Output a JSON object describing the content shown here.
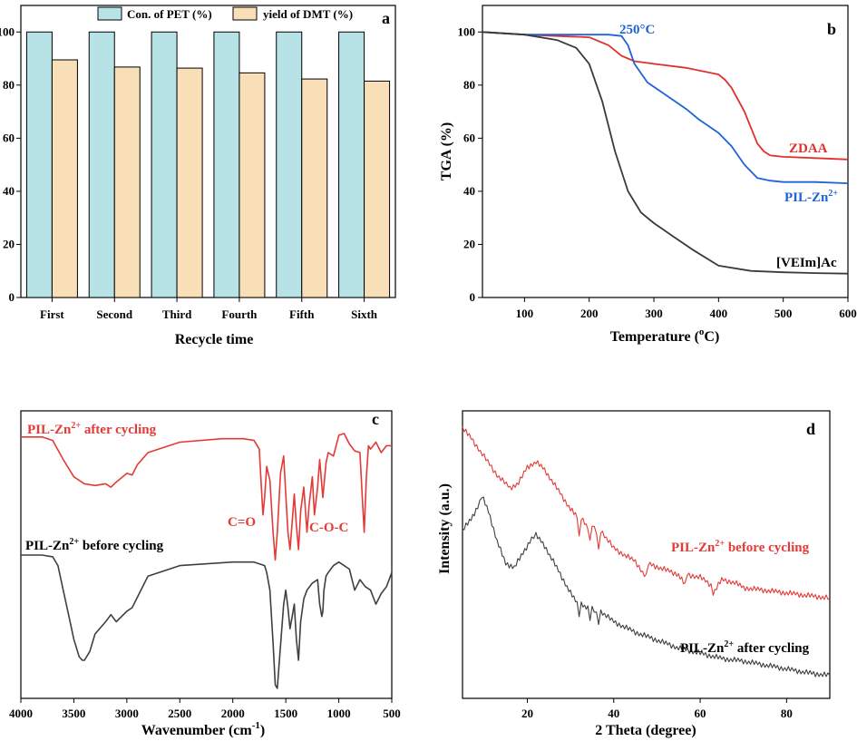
{
  "colors": {
    "pet": "#b7e2e6",
    "dmt": "#f8dfb8",
    "zdaa": "#e0302c",
    "pil": "#1e63d8",
    "veim": "#3a3a3a",
    "after": "#e33a36",
    "before": "#3f3f3f"
  },
  "chart_data": [
    {
      "panel": "a",
      "type": "bar",
      "xlabel": "Recycle time",
      "ylabel": "",
      "ylim": [
        0,
        110
      ],
      "yticks": [
        "0",
        "20",
        "40",
        "60",
        "80",
        "100"
      ],
      "categories": [
        "First",
        "Second",
        "Third",
        "Fourth",
        "Fifth",
        "Sixth"
      ],
      "series": [
        {
          "name": "Con. of PET (%)",
          "values": [
            100,
            100,
            100,
            100,
            100,
            100
          ]
        },
        {
          "name": "yield of DMT (%)",
          "values": [
            89.5,
            86.8,
            86.4,
            84.6,
            82.3,
            81.5
          ]
        }
      ],
      "legend": "top-center"
    },
    {
      "panel": "b",
      "type": "line",
      "xlabel_main": "Temperature (",
      "xlabel_sup": "o",
      "xlabel_end": "C)",
      "ylabel": "TGA (%)",
      "xlim": [
        35,
        600
      ],
      "ylim": [
        0,
        110
      ],
      "xticks": [
        "100",
        "200",
        "300",
        "400",
        "500",
        "600"
      ],
      "yticks": [
        "0",
        "20",
        "40",
        "60",
        "80",
        "100"
      ],
      "annotation": "250°C",
      "series": [
        {
          "name": "ZDAA",
          "x": [
            35,
            100,
            150,
            200,
            230,
            250,
            270,
            300,
            350,
            400,
            410,
            420,
            440,
            460,
            470,
            480,
            500,
            550,
            600
          ],
          "y": [
            100,
            99,
            98.5,
            98,
            95,
            91,
            89,
            88,
            86.5,
            84,
            82,
            79,
            70,
            58,
            55,
            53.5,
            53,
            52.5,
            52
          ]
        },
        {
          "name": "PIL-Zn",
          "sup": "2+",
          "x": [
            35,
            100,
            150,
            200,
            230,
            250,
            260,
            270,
            290,
            320,
            350,
            370,
            400,
            420,
            440,
            460,
            480,
            500,
            550,
            600
          ],
          "y": [
            100,
            99,
            99,
            99,
            99,
            98.5,
            95,
            88,
            81,
            76,
            71,
            67,
            62,
            57,
            50,
            45,
            44,
            43.5,
            43.5,
            43
          ]
        },
        {
          "name": "[VEIm]Ac",
          "x": [
            35,
            100,
            150,
            180,
            200,
            220,
            240,
            260,
            280,
            300,
            330,
            360,
            400,
            450,
            500,
            550,
            600
          ],
          "y": [
            100,
            99,
            97,
            94,
            88,
            74,
            55,
            40,
            32,
            28,
            23,
            18,
            12,
            10,
            9.5,
            9.2,
            9
          ]
        }
      ]
    },
    {
      "panel": "c",
      "type": "line",
      "xlabel_main": "Wavenumber (cm",
      "xlabel_sup": "-1",
      "xlabel_end": ")",
      "xlim": [
        4000,
        500
      ],
      "xticks": [
        "4000",
        "3500",
        "3000",
        "2500",
        "2000",
        "1500",
        "1000",
        "500"
      ],
      "annotations": [
        "C=O",
        "C-O-C"
      ],
      "series": [
        {
          "name": "PIL-Zn",
          "sup": "2+",
          "suffix": " after cycling",
          "x": [
            4000,
            3800,
            3700,
            3600,
            3500,
            3400,
            3300,
            3200,
            3150,
            3100,
            3000,
            2950,
            2900,
            2800,
            2500,
            2100,
            1900,
            1800,
            1750,
            1730,
            1715,
            1700,
            1680,
            1650,
            1620,
            1600,
            1580,
            1550,
            1520,
            1500,
            1480,
            1460,
            1440,
            1420,
            1400,
            1380,
            1360,
            1330,
            1300,
            1280,
            1250,
            1230,
            1200,
            1180,
            1150,
            1120,
            1100,
            1050,
            1000,
            950,
            900,
            850,
            800,
            780,
            760,
            740,
            720,
            700,
            650,
            600,
            550,
            500
          ],
          "y": [
            95,
            95,
            93,
            82,
            72,
            68,
            67,
            68,
            66,
            69,
            74,
            73,
            79,
            86,
            92,
            94,
            94,
            93,
            88,
            65,
            50,
            60,
            78,
            70,
            40,
            24,
            40,
            74,
            84,
            62,
            40,
            30,
            46,
            62,
            44,
            30,
            52,
            66,
            40,
            56,
            72,
            50,
            66,
            82,
            60,
            80,
            86,
            84,
            96,
            97,
            91,
            87,
            86,
            62,
            40,
            72,
            90,
            88,
            92,
            86,
            90,
            90
          ]
        },
        {
          "name": "PIL-Zn",
          "sup": "2+",
          "suffix": " before cycling",
          "x": [
            4000,
            3800,
            3700,
            3650,
            3600,
            3550,
            3500,
            3450,
            3420,
            3400,
            3350,
            3300,
            3200,
            3150,
            3100,
            3000,
            2950,
            2800,
            2500,
            2000,
            1800,
            1700,
            1680,
            1650,
            1620,
            1600,
            1580,
            1560,
            1520,
            1500,
            1480,
            1460,
            1440,
            1420,
            1400,
            1380,
            1360,
            1330,
            1300,
            1250,
            1200,
            1180,
            1160,
            1150,
            1140,
            1120,
            1100,
            1050,
            1000,
            950,
            900,
            850,
            800,
            750,
            700,
            650,
            600,
            550,
            500
          ],
          "y": [
            90,
            90,
            89,
            84,
            70,
            56,
            42,
            32,
            30,
            30,
            35,
            45,
            52,
            56,
            52,
            58,
            60,
            78,
            84,
            86,
            86,
            84,
            80,
            70,
            40,
            16,
            14,
            30,
            62,
            70,
            60,
            48,
            55,
            62,
            42,
            30,
            52,
            65,
            70,
            74,
            76,
            62,
            55,
            58,
            70,
            78,
            80,
            84,
            86,
            84,
            82,
            70,
            76,
            72,
            70,
            62,
            68,
            72,
            80
          ]
        }
      ]
    },
    {
      "panel": "d",
      "type": "line",
      "xlabel": "2 Theta (degree)",
      "ylabel": "Intensity (a.u.)",
      "xlim": [
        5,
        90
      ],
      "xticks": [
        "20",
        "40",
        "60",
        "80"
      ],
      "series": [
        {
          "name": "PIL-Zn",
          "sup": "2+",
          "suffix": " before cycling",
          "x": [
            5,
            7,
            10,
            13,
            16,
            18,
            20,
            22,
            24,
            26,
            28,
            30,
            31.5,
            32,
            32.5,
            34,
            34.5,
            35,
            36,
            36.5,
            37,
            40,
            45,
            47.5,
            48,
            50,
            55,
            56.5,
            57,
            60,
            62.5,
            63,
            65,
            68,
            70,
            75,
            80,
            85,
            90
          ],
          "y": [
            97,
            93,
            86,
            79,
            74,
            76,
            82,
            84,
            81,
            76,
            71,
            66,
            63,
            55,
            63,
            59,
            53,
            60,
            57,
            50,
            58,
            51,
            46,
            40,
            45,
            44,
            41,
            37,
            41,
            40,
            37,
            34,
            39,
            38,
            36,
            35,
            34,
            33,
            32
          ]
        },
        {
          "name": "PIL-Zn",
          "sup": "2+",
          "suffix": " after cycling",
          "x": [
            5,
            7,
            8.5,
            9.5,
            11,
            13,
            15,
            17,
            19,
            21,
            22,
            24,
            26,
            28,
            30,
            31.5,
            32,
            32.5,
            34,
            34.5,
            35,
            36,
            36.5,
            37,
            40,
            45,
            50,
            55,
            60,
            65,
            70,
            75,
            80,
            85,
            90
          ],
          "y": [
            58,
            62,
            67,
            71,
            65,
            54,
            45,
            44,
            49,
            55,
            56,
            52,
            46,
            40,
            34,
            30,
            26,
            30,
            28,
            24,
            28,
            26,
            23,
            27,
            23,
            19,
            16,
            13,
            11,
            9,
            8,
            6.5,
            5,
            3.5,
            2.5
          ]
        }
      ]
    }
  ]
}
